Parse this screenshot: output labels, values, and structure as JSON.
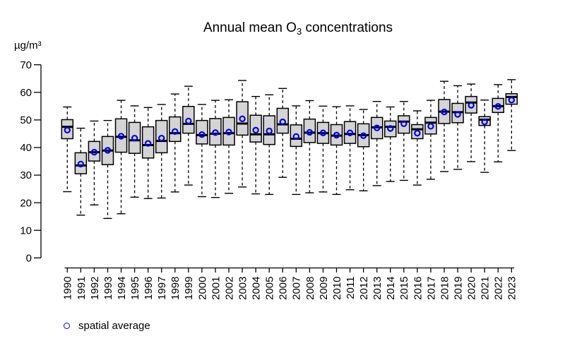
{
  "chart_data": {
    "type": "boxplot",
    "title": {
      "pre": "Annual mean O",
      "sub": "3",
      "post": " concentrations"
    },
    "ylabel": "µg/m³",
    "xlabel": "",
    "y_axis": {
      "min": 0,
      "max": 70,
      "tick_step": 10
    },
    "grid": false,
    "legend": {
      "label": "spatial average",
      "marker": "open-circle",
      "position": "bottom-left"
    },
    "style": {
      "background": "#ffffff",
      "box_fill": "#d4d4d4",
      "box_border": "#000000",
      "median_color": "#000000",
      "whisker_color": "#000000",
      "axis_color": "#000000",
      "text_color": "#000000",
      "mean_color": "#0000ee"
    },
    "categories": [
      "1990",
      "1991",
      "1992",
      "1993",
      "1994",
      "1995",
      "1996",
      "1997",
      "1998",
      "1999",
      "2000",
      "2001",
      "2002",
      "2003",
      "2004",
      "2005",
      "2006",
      "2007",
      "2008",
      "2009",
      "2010",
      "2011",
      "2012",
      "2013",
      "2014",
      "2015",
      "2016",
      "2017",
      "2018",
      "2019",
      "2020",
      "2021",
      "2022",
      "2023"
    ],
    "series": [
      {
        "year": "1990",
        "min": 24.0,
        "q1": 43.2,
        "median": 47.5,
        "q3": 50.1,
        "max": 54.7,
        "mean": 46.3
      },
      {
        "year": "1991",
        "min": 15.5,
        "q1": 30.5,
        "median": 33.5,
        "q3": 38.1,
        "max": 47.0,
        "mean": 34.0
      },
      {
        "year": "1992",
        "min": 19.2,
        "q1": 35.1,
        "median": 38.3,
        "q3": 42.2,
        "max": 49.6,
        "mean": 38.3
      },
      {
        "year": "1993",
        "min": 14.3,
        "q1": 33.8,
        "median": 38.9,
        "q3": 44.0,
        "max": 49.8,
        "mean": 39.0
      },
      {
        "year": "1994",
        "min": 16.0,
        "q1": 38.3,
        "median": 43.9,
        "q3": 50.4,
        "max": 57.1,
        "mean": 44.1
      },
      {
        "year": "1995",
        "min": 22.0,
        "q1": 37.9,
        "median": 42.6,
        "q3": 49.1,
        "max": 55.1,
        "mean": 43.4
      },
      {
        "year": "1996",
        "min": 21.5,
        "q1": 36.2,
        "median": 40.9,
        "q3": 47.5,
        "max": 54.5,
        "mean": 41.5
      },
      {
        "year": "1997",
        "min": 21.7,
        "q1": 38.1,
        "median": 42.4,
        "q3": 49.8,
        "max": 55.6,
        "mean": 43.4
      },
      {
        "year": "1998",
        "min": 23.9,
        "q1": 42.2,
        "median": 45.2,
        "q3": 51.1,
        "max": 59.4,
        "mean": 45.8
      },
      {
        "year": "1999",
        "min": 26.4,
        "q1": 45.2,
        "median": 48.6,
        "q3": 54.9,
        "max": 62.2,
        "mean": 49.6
      },
      {
        "year": "2000",
        "min": 22.2,
        "q1": 41.3,
        "median": 44.5,
        "q3": 49.8,
        "max": 55.6,
        "mean": 44.7
      },
      {
        "year": "2001",
        "min": 21.9,
        "q1": 40.9,
        "median": 45.0,
        "q3": 50.5,
        "max": 57.1,
        "mean": 45.4
      },
      {
        "year": "2002",
        "min": 23.4,
        "q1": 40.9,
        "median": 45.2,
        "q3": 50.9,
        "max": 57.3,
        "mean": 45.6
      },
      {
        "year": "2003",
        "min": 25.7,
        "q1": 44.5,
        "median": 48.7,
        "q3": 56.6,
        "max": 64.3,
        "mean": 50.4
      },
      {
        "year": "2004",
        "min": 23.2,
        "q1": 42.0,
        "median": 44.8,
        "q3": 51.7,
        "max": 58.5,
        "mean": 46.3
      },
      {
        "year": "2005",
        "min": 23.0,
        "q1": 41.1,
        "median": 44.8,
        "q3": 51.5,
        "max": 59.1,
        "mean": 46.0
      },
      {
        "year": "2006",
        "min": 29.2,
        "q1": 45.2,
        "median": 48.4,
        "q3": 54.2,
        "max": 61.4,
        "mean": 49.3
      },
      {
        "year": "2007",
        "min": 23.0,
        "q1": 40.4,
        "median": 43.2,
        "q3": 48.2,
        "max": 55.1,
        "mean": 44.0
      },
      {
        "year": "2008",
        "min": 23.6,
        "q1": 41.8,
        "median": 45.4,
        "q3": 50.3,
        "max": 57.0,
        "mean": 45.5
      },
      {
        "year": "2009",
        "min": 23.9,
        "q1": 41.5,
        "median": 45.2,
        "q3": 49.1,
        "max": 55.0,
        "mean": 45.3
      },
      {
        "year": "2010",
        "min": 23.0,
        "q1": 40.9,
        "median": 44.3,
        "q3": 48.3,
        "max": 54.8,
        "mean": 44.5
      },
      {
        "year": "2011",
        "min": 24.7,
        "q1": 41.5,
        "median": 44.9,
        "q3": 49.4,
        "max": 55.1,
        "mean": 45.3
      },
      {
        "year": "2012",
        "min": 24.3,
        "q1": 40.3,
        "median": 44.5,
        "q3": 48.6,
        "max": 53.8,
        "mean": 44.3
      },
      {
        "year": "2013",
        "min": 26.2,
        "q1": 43.2,
        "median": 47.3,
        "q3": 50.9,
        "max": 56.7,
        "mean": 47.1
      },
      {
        "year": "2014",
        "min": 27.7,
        "q1": 43.9,
        "median": 47.5,
        "q3": 49.6,
        "max": 54.7,
        "mean": 46.9
      },
      {
        "year": "2015",
        "min": 28.1,
        "q1": 45.2,
        "median": 49.4,
        "q3": 51.5,
        "max": 56.7,
        "mean": 48.6
      },
      {
        "year": "2016",
        "min": 26.4,
        "q1": 43.2,
        "median": 46.6,
        "q3": 48.3,
        "max": 53.3,
        "mean": 45.2
      },
      {
        "year": "2017",
        "min": 28.5,
        "q1": 44.9,
        "median": 49.0,
        "q3": 50.9,
        "max": 57.1,
        "mean": 47.7
      },
      {
        "year": "2018",
        "min": 31.3,
        "q1": 48.7,
        "median": 53.0,
        "q3": 57.4,
        "max": 64.0,
        "mean": 52.9
      },
      {
        "year": "2019",
        "min": 32.1,
        "q1": 49.0,
        "median": 52.8,
        "q3": 56.0,
        "max": 62.4,
        "mean": 52.0
      },
      {
        "year": "2020",
        "min": 34.9,
        "q1": 52.5,
        "median": 56.3,
        "q3": 58.5,
        "max": 63.0,
        "mean": 55.3
      },
      {
        "year": "2021",
        "min": 31.0,
        "q1": 48.0,
        "median": 50.1,
        "q3": 51.2,
        "max": 57.2,
        "mean": 49.3
      },
      {
        "year": "2022",
        "min": 34.8,
        "q1": 52.7,
        "median": 55.0,
        "q3": 57.8,
        "max": 62.8,
        "mean": 54.9
      },
      {
        "year": "2023",
        "min": 38.9,
        "q1": 55.7,
        "median": 58.3,
        "q3": 59.5,
        "max": 64.6,
        "mean": 57.2
      }
    ]
  }
}
